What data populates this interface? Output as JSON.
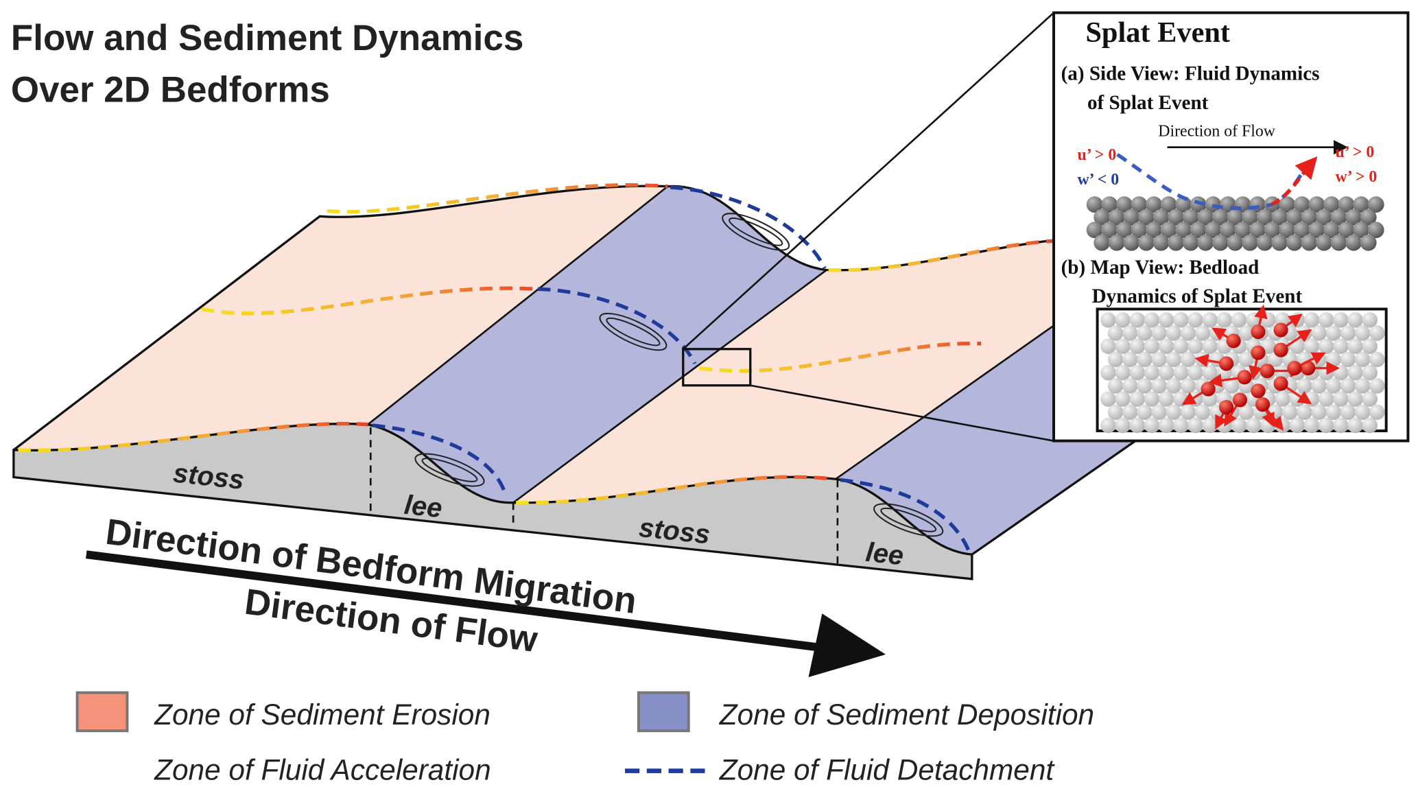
{
  "title": {
    "line1": "Flow and Sediment Dynamics",
    "line2": "Over 2D Bedforms"
  },
  "bedform_labels": {
    "stoss1": "stoss",
    "lee1": "lee",
    "stoss2": "stoss",
    "lee2": "lee"
  },
  "arrows": {
    "migration": "Direction of Bedform Migration",
    "flow": "Direction of Flow"
  },
  "inset": {
    "title": "Splat Event",
    "a_line1": "(a) Side View: Fluid Dynamics",
    "a_line2": "of Splat Event",
    "flow_label": "Direction of Flow",
    "left_u": "u’ > 0",
    "left_w": "w’ < 0",
    "right_u": "u’ > 0",
    "right_w": "w’ > 0",
    "b_line1": "(b) Map View: Bedload",
    "b_line2": "Dynamics of Splat Event"
  },
  "legend": {
    "erosion": "Zone of Sediment Erosion",
    "deposition": "Zone of Sediment Deposition",
    "acceleration": "Zone of Fluid Acceleration",
    "detachment": "Zone of Fluid Detachment"
  },
  "colors": {
    "erosion_surface": "#fbe3d8",
    "deposition_surface": "#b4b6dc",
    "erosion_legend": "#f4937a",
    "deposition_legend": "#8890c8",
    "detachment": "#1f3b9a",
    "acceleration_start": "#f5e11a",
    "acceleration_end": "#e8452a",
    "face": "#c9c9c9"
  }
}
